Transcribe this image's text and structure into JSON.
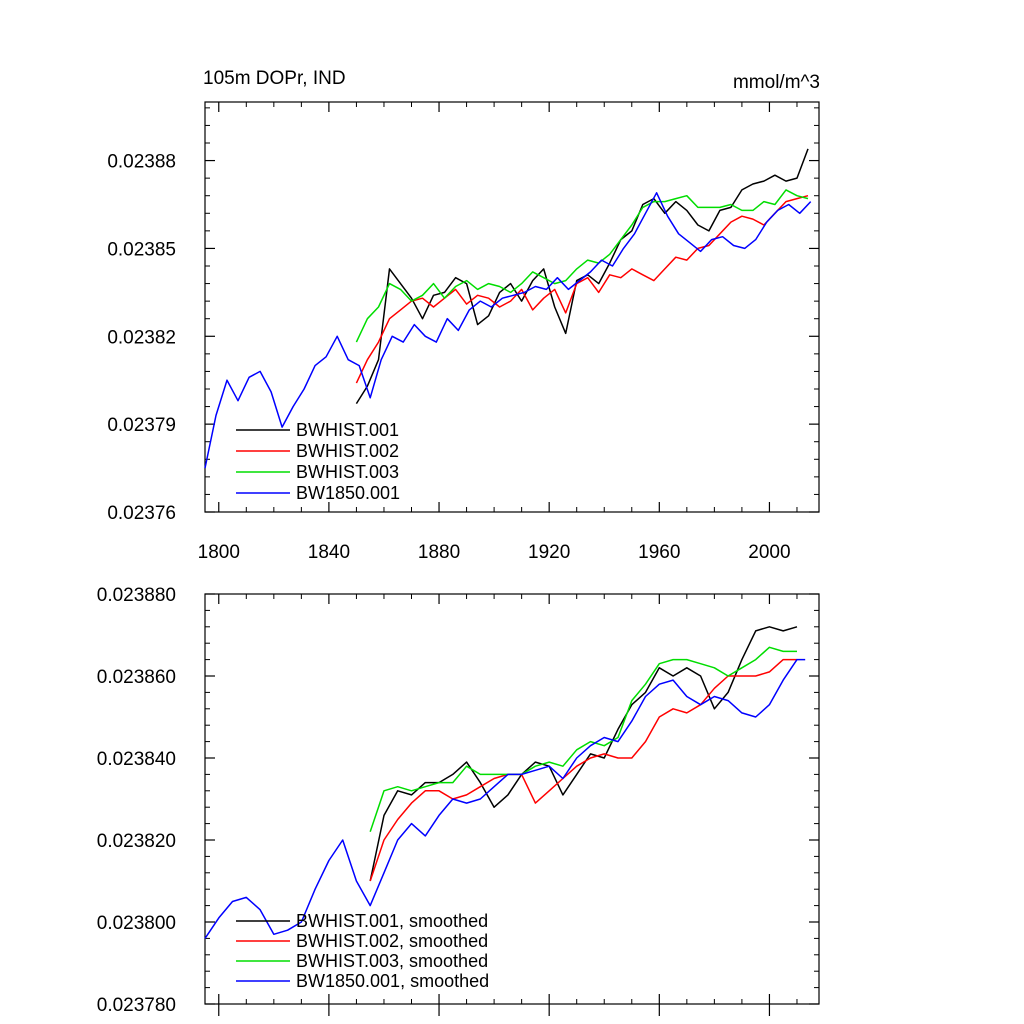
{
  "chart_data": [
    {
      "type": "line",
      "title": "105m DOPr, IND",
      "units": "mmol/m^3",
      "xlabel": "",
      "ylabel": "",
      "xlim": [
        1795,
        2018
      ],
      "ylim": [
        0.02376,
        0.0239
      ],
      "x_ticks": [
        1800,
        1840,
        1880,
        1920,
        1960,
        2000
      ],
      "x_tick_labels": [
        "1800",
        "1840",
        "1880",
        "1920",
        "1960",
        "2000"
      ],
      "y_ticks": [
        0.02376,
        0.02379,
        0.02382,
        0.02385,
        0.02388
      ],
      "y_tick_labels": [
        "0.02376",
        "0.02379",
        "0.02382",
        "0.02385",
        "0.02388"
      ],
      "legend_position": "bottom-left",
      "grid": false,
      "series": [
        {
          "name": "BWHIST.001",
          "color": "#000000",
          "x": [
            1850,
            1854,
            1858,
            1862,
            1866,
            1870,
            1874,
            1878,
            1882,
            1886,
            1890,
            1894,
            1898,
            1902,
            1906,
            1910,
            1914,
            1918,
            1922,
            1926,
            1930,
            1934,
            1938,
            1942,
            1946,
            1950,
            1954,
            1958,
            1962,
            1966,
            1970,
            1974,
            1978,
            1982,
            1986,
            1990,
            1994,
            1998,
            2002,
            2006,
            2010,
            2014
          ],
          "y": [
            0.023797,
            0.023803,
            0.023812,
            0.023843,
            0.023838,
            0.023833,
            0.023826,
            0.023834,
            0.023835,
            0.02384,
            0.023838,
            0.023824,
            0.023827,
            0.023835,
            0.023838,
            0.023832,
            0.023839,
            0.023843,
            0.02383,
            0.023821,
            0.023839,
            0.023841,
            0.023838,
            0.023845,
            0.023853,
            0.023856,
            0.023865,
            0.023867,
            0.023862,
            0.023866,
            0.023863,
            0.023858,
            0.023856,
            0.023863,
            0.023864,
            0.02387,
            0.023872,
            0.023873,
            0.023875,
            0.023873,
            0.023874,
            0.023884
          ]
        },
        {
          "name": "BWHIST.002",
          "color": "#ff0000",
          "x": [
            1850,
            1854,
            1858,
            1862,
            1866,
            1870,
            1874,
            1878,
            1882,
            1886,
            1890,
            1894,
            1898,
            1902,
            1906,
            1910,
            1914,
            1918,
            1922,
            1926,
            1930,
            1934,
            1938,
            1942,
            1946,
            1950,
            1954,
            1958,
            1962,
            1966,
            1970,
            1974,
            1978,
            1982,
            1986,
            1990,
            1994,
            1998,
            2002,
            2006,
            2010,
            2014
          ],
          "y": [
            0.023804,
            0.023812,
            0.023818,
            0.023826,
            0.023829,
            0.023832,
            0.023833,
            0.02383,
            0.023833,
            0.023836,
            0.023831,
            0.023834,
            0.023833,
            0.02383,
            0.023832,
            0.023836,
            0.023829,
            0.023833,
            0.023836,
            0.023828,
            0.023838,
            0.02384,
            0.023835,
            0.023841,
            0.02384,
            0.023843,
            0.023841,
            0.023839,
            0.023843,
            0.023847,
            0.023846,
            0.02385,
            0.023851,
            0.023855,
            0.023859,
            0.023861,
            0.02386,
            0.023858,
            0.023862,
            0.023866,
            0.023867,
            0.023868
          ]
        },
        {
          "name": "BWHIST.003",
          "color": "#00dd00",
          "x": [
            1850,
            1854,
            1858,
            1862,
            1866,
            1870,
            1874,
            1878,
            1882,
            1886,
            1890,
            1894,
            1898,
            1902,
            1906,
            1910,
            1914,
            1918,
            1922,
            1926,
            1930,
            1934,
            1938,
            1942,
            1946,
            1950,
            1954,
            1958,
            1962,
            1966,
            1970,
            1974,
            1978,
            1982,
            1986,
            1990,
            1994,
            1998,
            2002,
            2006,
            2010,
            2014
          ],
          "y": [
            0.023818,
            0.023826,
            0.02383,
            0.023838,
            0.023836,
            0.023832,
            0.023834,
            0.023838,
            0.023833,
            0.023837,
            0.023839,
            0.023836,
            0.023838,
            0.023837,
            0.023835,
            0.023838,
            0.023842,
            0.02384,
            0.023838,
            0.023839,
            0.023843,
            0.023846,
            0.023845,
            0.023848,
            0.023853,
            0.023858,
            0.023864,
            0.023866,
            0.023866,
            0.023867,
            0.023868,
            0.023864,
            0.023864,
            0.023864,
            0.023865,
            0.023863,
            0.023863,
            0.023866,
            0.023865,
            0.02387,
            0.023868,
            0.023867
          ]
        },
        {
          "name": "BW1850.001",
          "color": "#0000ff",
          "x": [
            1795,
            1799,
            1803,
            1807,
            1811,
            1815,
            1819,
            1823,
            1827,
            1831,
            1835,
            1839,
            1843,
            1847,
            1851,
            1855,
            1859,
            1863,
            1867,
            1871,
            1875,
            1879,
            1883,
            1887,
            1891,
            1895,
            1899,
            1903,
            1907,
            1911,
            1915,
            1919,
            1923,
            1927,
            1931,
            1935,
            1939,
            1943,
            1947,
            1951,
            1955,
            1959,
            1963,
            1967,
            1971,
            1975,
            1979,
            1983,
            1987,
            1991,
            1995,
            1999,
            2003,
            2007,
            2011,
            2015
          ],
          "y": [
            0.023775,
            0.023793,
            0.023805,
            0.023798,
            0.023806,
            0.023808,
            0.023801,
            0.023789,
            0.023796,
            0.023802,
            0.02381,
            0.023813,
            0.02382,
            0.023812,
            0.02381,
            0.023799,
            0.023812,
            0.02382,
            0.023818,
            0.023824,
            0.02382,
            0.023818,
            0.023826,
            0.023822,
            0.023829,
            0.023832,
            0.02383,
            0.023833,
            0.023834,
            0.023835,
            0.023837,
            0.023836,
            0.02384,
            0.023836,
            0.023839,
            0.023842,
            0.023846,
            0.023844,
            0.02385,
            0.023855,
            0.023862,
            0.023869,
            0.023861,
            0.023855,
            0.023852,
            0.023849,
            0.023853,
            0.023854,
            0.023851,
            0.02385,
            0.023853,
            0.023859,
            0.023863,
            0.023865,
            0.023862,
            0.023866
          ]
        }
      ]
    },
    {
      "type": "line",
      "title": "",
      "xlabel": "",
      "ylabel": "",
      "xlim": [
        1795,
        2018
      ],
      "ylim": [
        0.02378,
        0.02388
      ],
      "x_ticks": [
        1800,
        1840,
        1880,
        1920,
        1960,
        2000
      ],
      "x_tick_labels": [],
      "y_ticks": [
        0.02378,
        0.0238,
        0.02382,
        0.02384,
        0.02386,
        0.02388
      ],
      "y_tick_labels": [
        "0.023780",
        "0.023800",
        "0.023820",
        "0.023840",
        "0.023860",
        "0.023880"
      ],
      "legend_position": "bottom-left",
      "grid": false,
      "series": [
        {
          "name": "BWHIST.001, smoothed",
          "color": "#000000",
          "x": [
            1855,
            1860,
            1865,
            1870,
            1875,
            1880,
            1885,
            1890,
            1895,
            1900,
            1905,
            1910,
            1915,
            1920,
            1925,
            1930,
            1935,
            1940,
            1945,
            1950,
            1955,
            1960,
            1965,
            1970,
            1975,
            1980,
            1985,
            1990,
            1995,
            2000,
            2005,
            2010
          ],
          "y": [
            0.02381,
            0.023826,
            0.023832,
            0.023831,
            0.023834,
            0.023834,
            0.023836,
            0.023839,
            0.023834,
            0.023828,
            0.023831,
            0.023836,
            0.023839,
            0.023838,
            0.023831,
            0.023836,
            0.023841,
            0.02384,
            0.023847,
            0.023853,
            0.023856,
            0.023862,
            0.02386,
            0.023862,
            0.02386,
            0.023852,
            0.023856,
            0.023864,
            0.023871,
            0.023872,
            0.023871,
            0.023872
          ]
        },
        {
          "name": "BWHIST.002, smoothed",
          "color": "#ff0000",
          "x": [
            1855,
            1860,
            1865,
            1870,
            1875,
            1880,
            1885,
            1890,
            1895,
            1900,
            1905,
            1910,
            1915,
            1920,
            1925,
            1930,
            1935,
            1940,
            1945,
            1950,
            1955,
            1960,
            1965,
            1970,
            1975,
            1980,
            1985,
            1990,
            1995,
            2000,
            2005,
            2010
          ],
          "y": [
            0.02381,
            0.02382,
            0.023825,
            0.023829,
            0.023832,
            0.023832,
            0.02383,
            0.023831,
            0.023833,
            0.023835,
            0.023836,
            0.023836,
            0.023829,
            0.023832,
            0.023835,
            0.023838,
            0.02384,
            0.023841,
            0.02384,
            0.02384,
            0.023844,
            0.02385,
            0.023852,
            0.023851,
            0.023853,
            0.023857,
            0.02386,
            0.02386,
            0.02386,
            0.023861,
            0.023864,
            0.023864
          ]
        },
        {
          "name": "BWHIST.003, smoothed",
          "color": "#00dd00",
          "x": [
            1855,
            1860,
            1865,
            1870,
            1875,
            1880,
            1885,
            1890,
            1895,
            1900,
            1905,
            1910,
            1915,
            1920,
            1925,
            1930,
            1935,
            1940,
            1945,
            1950,
            1955,
            1960,
            1965,
            1970,
            1975,
            1980,
            1985,
            1990,
            1995,
            2000,
            2005,
            2010
          ],
          "y": [
            0.023822,
            0.023832,
            0.023833,
            0.023832,
            0.023833,
            0.023834,
            0.023834,
            0.023838,
            0.023836,
            0.023836,
            0.023836,
            0.023836,
            0.023838,
            0.023839,
            0.023838,
            0.023842,
            0.023844,
            0.023843,
            0.023845,
            0.023854,
            0.023858,
            0.023863,
            0.023864,
            0.023864,
            0.023863,
            0.023862,
            0.02386,
            0.023862,
            0.023864,
            0.023867,
            0.023866,
            0.023866
          ]
        },
        {
          "name": "BW1850.001, smoothed",
          "color": "#0000ff",
          "x": [
            1795,
            1800,
            1805,
            1810,
            1815,
            1820,
            1825,
            1830,
            1835,
            1840,
            1845,
            1850,
            1855,
            1860,
            1865,
            1870,
            1875,
            1880,
            1885,
            1890,
            1895,
            1900,
            1905,
            1910,
            1915,
            1920,
            1925,
            1930,
            1935,
            1940,
            1945,
            1950,
            1955,
            1960,
            1965,
            1970,
            1975,
            1980,
            1985,
            1990,
            1995,
            2000,
            2005,
            2010,
            2013
          ],
          "y": [
            0.023796,
            0.023801,
            0.023805,
            0.023806,
            0.023803,
            0.023797,
            0.023798,
            0.0238,
            0.023808,
            0.023815,
            0.02382,
            0.02381,
            0.023804,
            0.023812,
            0.02382,
            0.023824,
            0.023821,
            0.023826,
            0.02383,
            0.023829,
            0.02383,
            0.023833,
            0.023836,
            0.023836,
            0.023837,
            0.023838,
            0.023835,
            0.02384,
            0.023843,
            0.023845,
            0.023844,
            0.023849,
            0.023855,
            0.023858,
            0.023859,
            0.023855,
            0.023853,
            0.023855,
            0.023854,
            0.023851,
            0.02385,
            0.023853,
            0.023859,
            0.023864,
            0.023864
          ]
        }
      ]
    }
  ]
}
